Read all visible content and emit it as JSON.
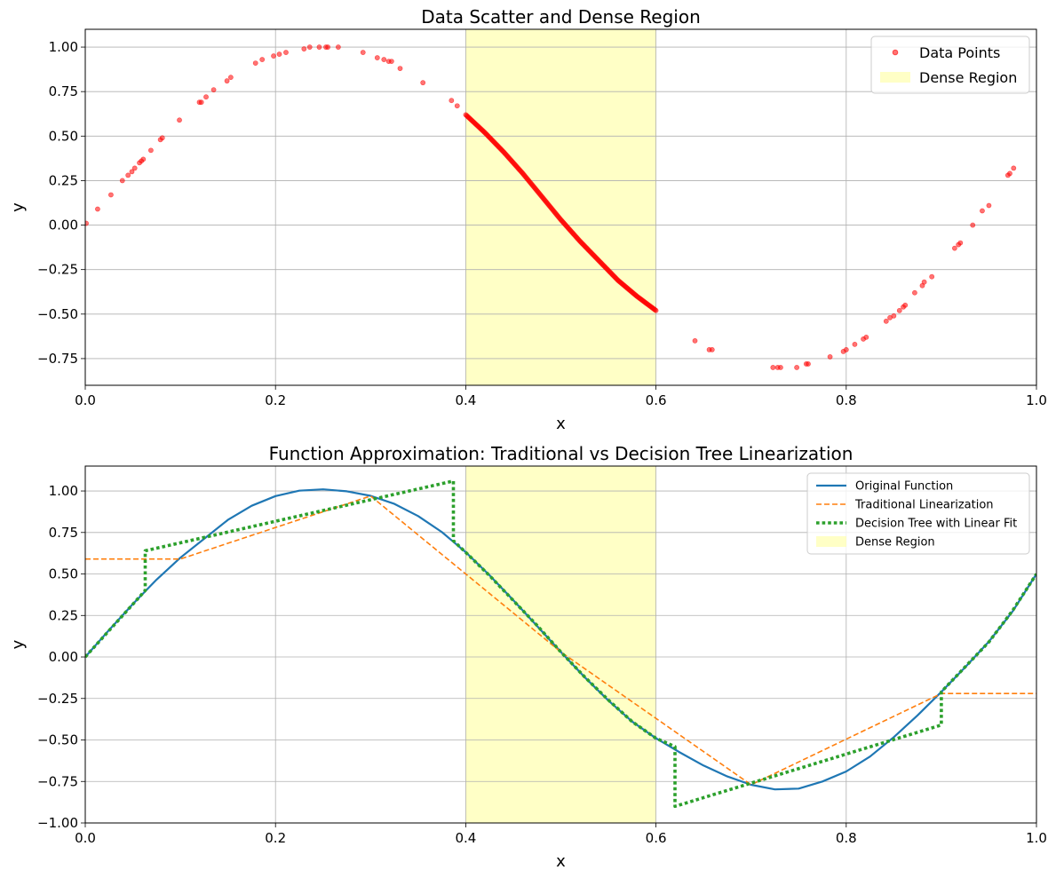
{
  "chart_data": [
    {
      "type": "scatter",
      "title": "Data Scatter and Dense Region",
      "xlabel": "x",
      "ylabel": "y",
      "xlim": [
        0.0,
        1.0
      ],
      "ylim": [
        -0.9,
        1.1
      ],
      "xticks": [
        "0.0",
        "0.2",
        "0.4",
        "0.6",
        "0.8",
        "1.0"
      ],
      "yticks": [
        "-0.75",
        "-0.50",
        "-0.25",
        "0.00",
        "0.25",
        "0.50",
        "0.75",
        "1.00"
      ],
      "grid": true,
      "legend_position": "top-right",
      "legend": [
        "Data Points",
        "Dense Region"
      ],
      "dense_region": {
        "x_start": 0.4,
        "x_end": 0.6,
        "color": "#ffffb3"
      },
      "series": [
        {
          "name": "Data Points",
          "color": "#ff0000",
          "x": [
            0.001,
            0.013,
            0.027,
            0.039,
            0.045,
            0.049,
            0.052,
            0.057,
            0.059,
            0.061,
            0.069,
            0.079,
            0.081,
            0.099,
            0.12,
            0.122,
            0.127,
            0.135,
            0.149,
            0.153,
            0.179,
            0.186,
            0.198,
            0.204,
            0.211,
            0.23,
            0.236,
            0.246,
            0.253,
            0.255,
            0.266,
            0.292,
            0.307,
            0.314,
            0.319,
            0.322,
            0.331,
            0.355,
            0.385,
            0.391,
            0.641,
            0.656,
            0.659,
            0.723,
            0.728,
            0.731,
            0.748,
            0.758,
            0.76,
            0.783,
            0.797,
            0.8,
            0.809,
            0.818,
            0.821,
            0.842,
            0.846,
            0.85,
            0.856,
            0.86,
            0.862,
            0.872,
            0.88,
            0.882,
            0.89,
            0.914,
            0.918,
            0.92,
            0.933,
            0.943,
            0.95,
            0.97,
            0.972,
            0.976
          ],
          "y": [
            0.01,
            0.09,
            0.17,
            0.25,
            0.28,
            0.3,
            0.32,
            0.35,
            0.36,
            0.37,
            0.42,
            0.48,
            0.49,
            0.59,
            0.69,
            0.69,
            0.72,
            0.76,
            0.81,
            0.83,
            0.91,
            0.93,
            0.95,
            0.96,
            0.97,
            0.99,
            1.0,
            1.0,
            1.0,
            1.0,
            1.0,
            0.97,
            0.94,
            0.93,
            0.92,
            0.92,
            0.88,
            0.8,
            0.7,
            0.67,
            -0.65,
            -0.7,
            -0.7,
            -0.8,
            -0.8,
            -0.8,
            -0.8,
            -0.78,
            -0.78,
            -0.74,
            -0.71,
            -0.7,
            -0.67,
            -0.64,
            -0.63,
            -0.54,
            -0.52,
            -0.51,
            -0.48,
            -0.46,
            -0.45,
            -0.38,
            -0.34,
            -0.32,
            -0.29,
            -0.13,
            -0.11,
            -0.1,
            0.0,
            0.08,
            0.11,
            0.28,
            0.29,
            0.32
          ]
        },
        {
          "name": "Data Points (dense region)",
          "color": "#ff0000",
          "x_range": [
            0.4,
            0.6
          ],
          "x": [
            0.4,
            0.42,
            0.44,
            0.46,
            0.48,
            0.5,
            0.52,
            0.54,
            0.56,
            0.58,
            0.6
          ],
          "y": [
            0.62,
            0.52,
            0.41,
            0.29,
            0.16,
            0.03,
            -0.09,
            -0.2,
            -0.31,
            -0.4,
            -0.48
          ]
        }
      ]
    },
    {
      "type": "line",
      "title": "Function Approximation: Traditional vs Decision Tree Linearization",
      "xlabel": "x",
      "ylabel": "y",
      "xlim": [
        0.0,
        1.0
      ],
      "ylim": [
        -1.0,
        1.15
      ],
      "xticks": [
        "0.0",
        "0.2",
        "0.4",
        "0.6",
        "0.8",
        "1.0"
      ],
      "yticks": [
        "-1.00",
        "-0.75",
        "-0.50",
        "-0.25",
        "0.00",
        "0.25",
        "0.50",
        "0.75",
        "1.00"
      ],
      "grid": true,
      "legend_position": "top-right",
      "legend": [
        "Original Function",
        "Traditional Linearization",
        "Decision Tree with Linear Fit",
        "Dense Region"
      ],
      "dense_region": {
        "x_start": 0.4,
        "x_end": 0.6,
        "color": "#ffffb3"
      },
      "series": [
        {
          "name": "Original Function",
          "color": "#1f77b4",
          "style": "solid",
          "x": [
            0.0,
            0.025,
            0.05,
            0.075,
            0.1,
            0.125,
            0.15,
            0.175,
            0.2,
            0.225,
            0.25,
            0.275,
            0.3,
            0.325,
            0.35,
            0.375,
            0.4,
            0.425,
            0.45,
            0.475,
            0.5,
            0.525,
            0.55,
            0.575,
            0.6,
            0.625,
            0.65,
            0.675,
            0.7,
            0.725,
            0.75,
            0.775,
            0.8,
            0.825,
            0.85,
            0.875,
            0.9,
            0.925,
            0.95,
            0.975,
            1.0
          ],
          "y": [
            0.0,
            0.162,
            0.319,
            0.466,
            0.598,
            0.712,
            0.826,
            0.911,
            0.969,
            1.002,
            1.01,
            0.998,
            0.971,
            0.922,
            0.849,
            0.752,
            0.631,
            0.492,
            0.342,
            0.187,
            0.03,
            -0.122,
            -0.263,
            -0.389,
            -0.49,
            -0.575,
            -0.654,
            -0.72,
            -0.77,
            -0.798,
            -0.793,
            -0.75,
            -0.69,
            -0.6,
            -0.483,
            -0.352,
            -0.21,
            -0.062,
            0.092,
            0.275,
            0.5
          ]
        },
        {
          "name": "Traditional Linearization",
          "color": "#ff7f0e",
          "style": "dashed",
          "x": [
            0.0,
            0.1,
            0.3,
            0.5,
            0.7,
            0.9,
            1.0
          ],
          "y": [
            0.59,
            0.59,
            0.97,
            0.03,
            -0.77,
            -0.22,
            -0.22
          ]
        },
        {
          "name": "Decision Tree with Linear Fit",
          "color": "#2ca02c",
          "style": "dotted",
          "x": [
            0.0,
            0.063,
            0.063,
            0.387,
            0.387,
            0.4,
            0.425,
            0.45,
            0.475,
            0.5,
            0.525,
            0.55,
            0.575,
            0.6,
            0.62,
            0.62,
            0.9,
            0.9,
            0.925,
            0.95,
            0.975,
            1.0
          ],
          "y": [
            0.0,
            0.4,
            0.64,
            1.06,
            0.7,
            0.63,
            0.49,
            0.34,
            0.19,
            0.03,
            -0.12,
            -0.26,
            -0.39,
            -0.49,
            -0.54,
            -0.9,
            -0.41,
            -0.21,
            -0.06,
            0.09,
            0.28,
            0.5
          ]
        }
      ]
    }
  ]
}
